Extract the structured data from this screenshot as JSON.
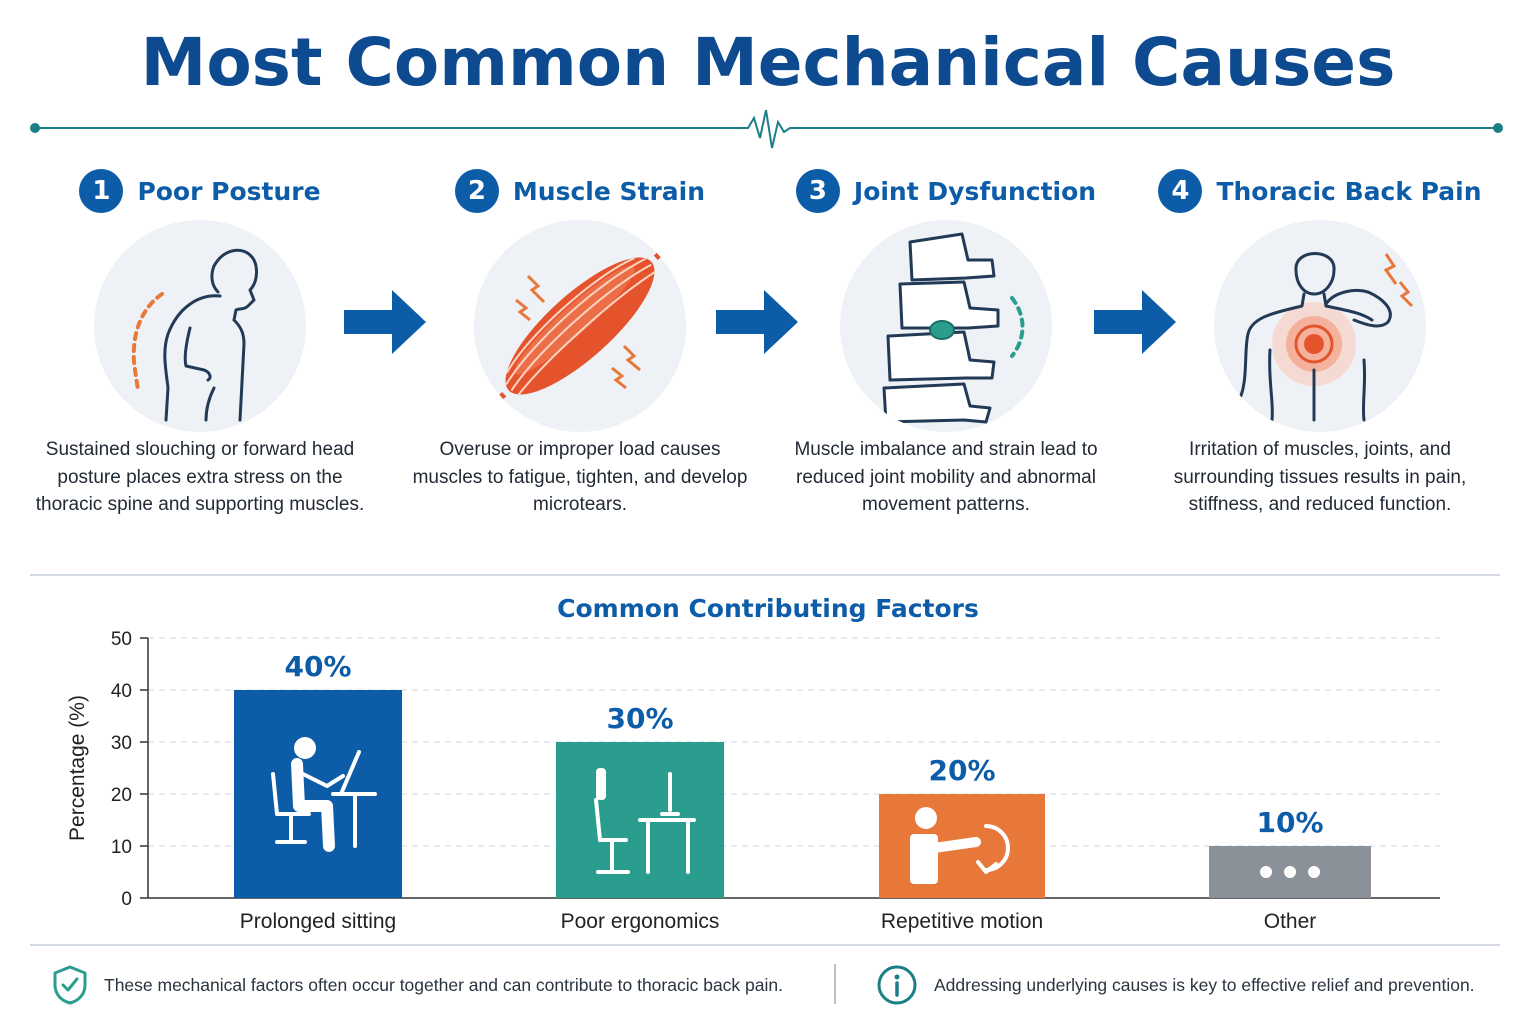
{
  "title": "Most Common Mechanical Causes",
  "steps": [
    {
      "number": "1",
      "title": "Poor Posture",
      "description": "Sustained slouching or forward head posture places extra stress on the thoracic spine and supporting muscles.",
      "icon": "slouching-person-icon"
    },
    {
      "number": "2",
      "title": "Muscle Strain",
      "description": "Overuse or improper load causes muscles to fatigue, tighten, and develop microtears.",
      "icon": "strained-muscle-icon"
    },
    {
      "number": "3",
      "title": "Joint Dysfunction",
      "description": "Muscle imbalance and strain lead to reduced joint mobility and abnormal movement patterns.",
      "icon": "spine-vertebrae-icon"
    },
    {
      "number": "4",
      "title": "Thoracic Back Pain",
      "description": "Irritation of muscles, joints, and surrounding tissues results in pain, stiffness, and reduced function.",
      "icon": "back-pain-icon"
    }
  ],
  "colors": {
    "primary": "#0d5ca8",
    "title": "#0d4a8f",
    "teal": "#2a9d8f",
    "accent_orange": "#e8773a",
    "gray": "#8a9199"
  },
  "chart_data": {
    "type": "bar",
    "title": "Common Contributing Factors",
    "ylabel": "Percentage (%)",
    "xlabel": "",
    "ylim": [
      0,
      50
    ],
    "yticks": [
      0,
      10,
      20,
      30,
      40,
      50
    ],
    "grid": true,
    "categories": [
      "Prolonged sitting",
      "Poor ergonomics",
      "Repetitive motion",
      "Other"
    ],
    "values": [
      40,
      30,
      20,
      10
    ],
    "data_labels": [
      "40%",
      "30%",
      "20%",
      "10%"
    ],
    "bar_colors": [
      "#0d5ca8",
      "#2a9d8f",
      "#e8773a",
      "#8a9199"
    ],
    "bar_icons": [
      "person-at-desk-icon",
      "office-chair-desk-icon",
      "repetitive-motion-icon",
      "more-dots-icon"
    ]
  },
  "footer": {
    "left_text": "These mechanical factors often occur together and can contribute to thoracic back pain.",
    "right_text": "Addressing underlying causes is key to effective relief and prevention.",
    "left_icon": "shield-check-icon",
    "right_icon": "info-icon"
  }
}
